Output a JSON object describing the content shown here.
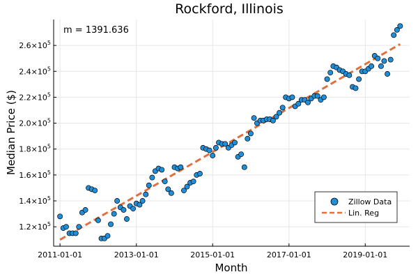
{
  "chart_data": {
    "type": "scatter",
    "title": "Rockford, Illinois",
    "xlabel": "Month",
    "ylabel": "Median Price ($)",
    "annotation": "m = 1391.636",
    "x_ticks": [
      "2011-01-01",
      "2013-01-01",
      "2015-01-01",
      "2017-01-01",
      "2019-01-01"
    ],
    "y_ticks": [
      {
        "value": 120000,
        "mantissa": "1.2",
        "exp": "5"
      },
      {
        "value": 140000,
        "mantissa": "1.4",
        "exp": "5"
      },
      {
        "value": 160000,
        "mantissa": "1.6",
        "exp": "5"
      },
      {
        "value": 180000,
        "mantissa": "1.8",
        "exp": "5"
      },
      {
        "value": 200000,
        "mantissa": "2.0",
        "exp": "5"
      },
      {
        "value": 220000,
        "mantissa": "2.2",
        "exp": "5"
      },
      {
        "value": 240000,
        "mantissa": "2.4",
        "exp": "5"
      },
      {
        "value": 260000,
        "mantissa": "2.6",
        "exp": "5"
      }
    ],
    "xlim": [
      "2010-11-01",
      "2020-03-01"
    ],
    "ylim": [
      105000,
      280000
    ],
    "grid": true,
    "legend_position": "bottom-right",
    "colors": {
      "scatter": "#1f8fd9",
      "line": "#e0703d"
    },
    "series": [
      {
        "name": "Zillow Data",
        "type": "scatter",
        "x": [
          "2011-01-01",
          "2011-02-01",
          "2011-03-01",
          "2011-04-01",
          "2011-05-01",
          "2011-06-01",
          "2011-07-01",
          "2011-08-01",
          "2011-09-01",
          "2011-10-01",
          "2011-11-01",
          "2011-12-01",
          "2012-01-01",
          "2012-02-01",
          "2012-03-01",
          "2012-04-01",
          "2012-05-01",
          "2012-06-01",
          "2012-07-01",
          "2012-08-01",
          "2012-09-01",
          "2012-10-01",
          "2012-11-01",
          "2012-12-01",
          "2013-01-01",
          "2013-02-01",
          "2013-03-01",
          "2013-04-01",
          "2013-05-01",
          "2013-06-01",
          "2013-07-01",
          "2013-08-01",
          "2013-09-01",
          "2013-10-01",
          "2013-11-01",
          "2013-12-01",
          "2014-01-01",
          "2014-02-01",
          "2014-03-01",
          "2014-04-01",
          "2014-05-01",
          "2014-06-01",
          "2014-07-01",
          "2014-08-01",
          "2014-09-01",
          "2014-10-01",
          "2014-11-01",
          "2014-12-01",
          "2015-01-01",
          "2015-02-01",
          "2015-03-01",
          "2015-04-01",
          "2015-05-01",
          "2015-06-01",
          "2015-07-01",
          "2015-08-01",
          "2015-09-01",
          "2015-10-01",
          "2015-11-01",
          "2015-12-01",
          "2016-01-01",
          "2016-02-01",
          "2016-03-01",
          "2016-04-01",
          "2016-05-01",
          "2016-06-01",
          "2016-07-01",
          "2016-08-01",
          "2016-09-01",
          "2016-10-01",
          "2016-11-01",
          "2016-12-01",
          "2017-01-01",
          "2017-02-01",
          "2017-03-01",
          "2017-04-01",
          "2017-05-01",
          "2017-06-01",
          "2017-07-01",
          "2017-08-01",
          "2017-09-01",
          "2017-10-01",
          "2017-11-01",
          "2017-12-01",
          "2018-01-01",
          "2018-02-01",
          "2018-03-01",
          "2018-04-01",
          "2018-05-01",
          "2018-06-01",
          "2018-07-01",
          "2018-08-01",
          "2018-09-01",
          "2018-10-01",
          "2018-11-01",
          "2018-12-01",
          "2019-01-01",
          "2019-02-01",
          "2019-03-01",
          "2019-04-01",
          "2019-05-01",
          "2019-06-01",
          "2019-07-01",
          "2019-08-01",
          "2019-09-01",
          "2019-10-01",
          "2019-11-01",
          "2019-12-01"
        ],
        "y": [
          128000,
          119000,
          120000,
          115000,
          115000,
          115000,
          120000,
          131000,
          133000,
          150000,
          149000,
          148000,
          125000,
          111000,
          111000,
          113000,
          122000,
          130000,
          140000,
          135000,
          133000,
          126000,
          136000,
          134000,
          138000,
          137000,
          140000,
          145000,
          152000,
          158000,
          163000,
          165000,
          164000,
          155000,
          149000,
          146000,
          166000,
          165000,
          166000,
          148000,
          151000,
          154000,
          155000,
          160000,
          161000,
          181000,
          180000,
          179000,
          175000,
          181000,
          185000,
          184000,
          184000,
          181000,
          183000,
          185000,
          174000,
          176000,
          166000,
          188000,
          192000,
          204000,
          200000,
          202000,
          202000,
          203000,
          203000,
          202000,
          205000,
          208000,
          212000,
          220000,
          219000,
          220000,
          213000,
          215000,
          218000,
          218000,
          216000,
          219000,
          221000,
          221000,
          218000,
          220000,
          234000,
          239000,
          244000,
          243000,
          241000,
          240000,
          238000,
          237000,
          228000,
          227000,
          234000,
          240000,
          240000,
          242000,
          244000,
          252000,
          250000,
          244000,
          248000,
          238000,
          249000,
          268000,
          272000,
          275000
        ]
      },
      {
        "name": "Lin. Reg",
        "type": "line",
        "x": [
          "2011-01-01",
          "2019-12-01"
        ],
        "y": [
          110000,
          261000
        ]
      }
    ]
  }
}
